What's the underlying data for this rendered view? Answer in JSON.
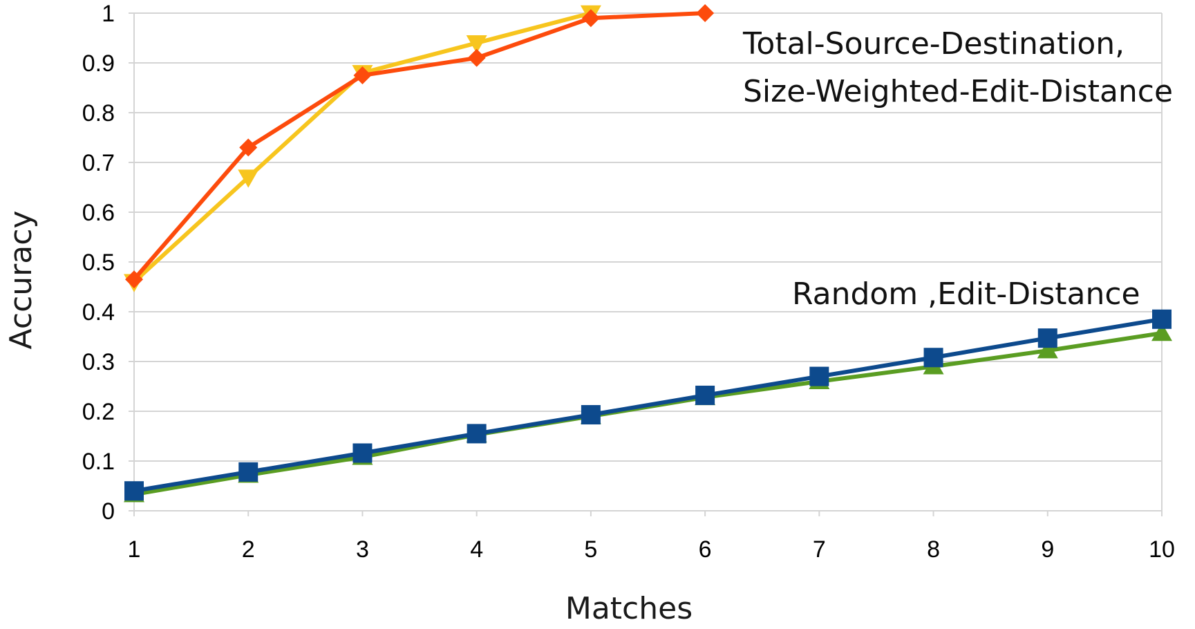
{
  "chart_data": {
    "type": "line",
    "xlabel": "Matches",
    "ylabel": "Accuracy",
    "xlim": [
      1,
      10
    ],
    "ylim": [
      0,
      1
    ],
    "x_ticks": [
      "1",
      "2",
      "3",
      "4",
      "5",
      "6",
      "7",
      "8",
      "9",
      "10"
    ],
    "y_ticks": [
      "0",
      "0.1",
      "0.2",
      "0.3",
      "0.4",
      "0.5",
      "0.6",
      "0.7",
      "0.8",
      "0.9",
      "1"
    ],
    "grid": "horizontal",
    "annotations": {
      "upper_line1": "Total-Source-Destination,",
      "upper_line2": "Size-Weighted-Edit-Distance",
      "lower": "Random ,Edit-Distance"
    },
    "series": [
      {
        "color": "#f7c51e",
        "marker": "triangle-down",
        "x": [
          1,
          2,
          3,
          4,
          5
        ],
        "values": [
          0.46,
          0.67,
          0.88,
          0.94,
          1.0
        ]
      },
      {
        "color": "#fd4b0c",
        "marker": "diamond",
        "x": [
          1,
          2,
          3,
          4,
          5,
          6
        ],
        "values": [
          0.465,
          0.73,
          0.875,
          0.91,
          0.99,
          1.0
        ]
      },
      {
        "color": "#5a9d22",
        "marker": "triangle-up",
        "x": [
          1,
          2,
          3,
          4,
          5,
          6,
          7,
          8,
          9,
          10
        ],
        "values": [
          0.033,
          0.072,
          0.108,
          0.153,
          0.19,
          0.228,
          0.26,
          0.29,
          0.322,
          0.357
        ]
      },
      {
        "color": "#0d4a8d",
        "marker": "square",
        "x": [
          1,
          2,
          3,
          4,
          5,
          6,
          7,
          8,
          9,
          10
        ],
        "values": [
          0.04,
          0.078,
          0.116,
          0.155,
          0.193,
          0.232,
          0.27,
          0.308,
          0.347,
          0.385
        ]
      }
    ]
  }
}
